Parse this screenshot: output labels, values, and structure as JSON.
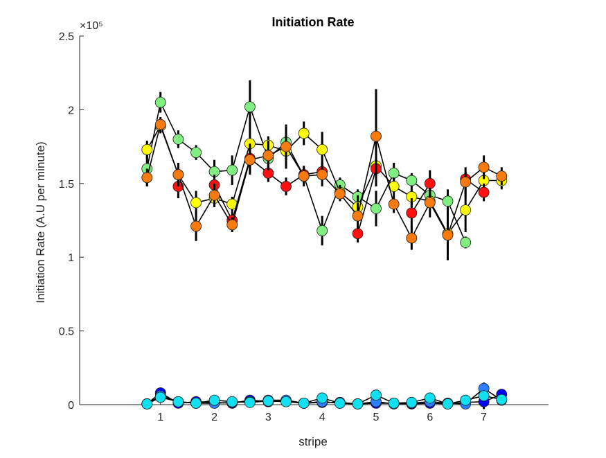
{
  "chart_data": {
    "type": "scatter",
    "title": "Initiation Rate",
    "xlabel": "stripe",
    "ylabel": "Initiation Rate (A.U per minute)",
    "exponent_label": "×10⁵",
    "xlim": [
      -0.5,
      8.2
    ],
    "ylim": [
      0,
      2.5
    ],
    "y_scale": 100000,
    "x_ticks": [
      1,
      2,
      3,
      4,
      5,
      6,
      7
    ],
    "x_tick_labels": [
      "1",
      "2",
      "3",
      "4",
      "5",
      "6",
      "7"
    ],
    "y_ticks": [
      0,
      0.5,
      1,
      1.5,
      2,
      2.5
    ],
    "y_tick_labels": [
      "0",
      "0.5",
      "1",
      "1.5",
      "2",
      "2.5"
    ],
    "grid": false,
    "box": "left-bottom",
    "x": [
      0.75,
      1.0,
      1.33,
      1.66,
      2.0,
      2.33,
      2.66,
      3.0,
      3.33,
      3.66,
      4.0,
      4.33,
      4.66,
      5.0,
      5.33,
      5.66,
      6.0,
      6.33,
      6.66,
      7.0,
      7.33
    ],
    "series": [
      {
        "color": "#80ee80",
        "values": [
          1.6,
          2.05,
          1.8,
          1.71,
          1.58,
          1.59,
          2.02,
          1.67,
          1.78,
          1.55,
          1.18,
          1.49,
          1.41,
          1.33,
          1.57,
          1.52,
          1.42,
          1.38,
          1.1,
          null,
          null
        ],
        "errors": [
          0.12,
          0.07,
          0.06,
          0.05,
          0.08,
          0.1,
          0.18,
          0.06,
          0.06,
          0.05,
          0.1,
          0.05,
          0.05,
          0.12,
          0.07,
          0.05,
          0.05,
          0.08,
          0.04,
          null,
          null
        ]
      },
      {
        "color": "#ffff00",
        "values": [
          1.73,
          1.89,
          1.56,
          1.37,
          1.4,
          1.36,
          1.77,
          1.76,
          1.72,
          1.84,
          1.73,
          1.44,
          1.34,
          1.62,
          1.48,
          1.41,
          1.38,
          1.16,
          1.32,
          1.52,
          1.52
        ],
        "errors": [
          0.06,
          0.05,
          0.05,
          0.08,
          0.06,
          0.05,
          0.07,
          0.06,
          0.1,
          0.08,
          0.12,
          0.05,
          0.08,
          0.1,
          0.06,
          0.07,
          0.05,
          0.08,
          0.15,
          0.08,
          0.06
        ]
      },
      {
        "color": "#ff1010",
        "values": [
          null,
          null,
          1.48,
          null,
          1.49,
          1.25,
          1.67,
          1.57,
          1.48,
          1.56,
          1.58,
          null,
          1.16,
          1.6,
          null,
          1.3,
          1.5,
          null,
          1.53,
          1.44,
          null
        ],
        "errors": [
          null,
          null,
          0.08,
          null,
          0.07,
          0.06,
          0.1,
          0.06,
          0.06,
          0.05,
          0.06,
          null,
          0.06,
          0.12,
          null,
          0.1,
          0.09,
          null,
          0.05,
          0.06,
          null
        ]
      },
      {
        "color": "#f57a10",
        "values": [
          1.54,
          1.9,
          1.56,
          1.21,
          1.42,
          1.22,
          1.66,
          1.69,
          1.75,
          1.55,
          1.56,
          1.43,
          1.28,
          1.82,
          1.36,
          1.13,
          1.37,
          1.15,
          1.51,
          1.61,
          1.55
        ],
        "errors": [
          0.06,
          0.05,
          0.08,
          0.1,
          0.08,
          0.05,
          0.1,
          0.1,
          0.15,
          0.07,
          0.08,
          0.05,
          0.09,
          0.32,
          0.06,
          0.08,
          0.1,
          0.17,
          0.1,
          0.08,
          0.06
        ]
      },
      {
        "color": "#0000ff",
        "values": [
          0.005,
          0.08,
          0.01,
          0.02,
          0.015,
          0.01,
          0.03,
          0.02,
          0.025,
          0.01,
          0.015,
          0.015,
          0.005,
          0.01,
          0.01,
          0.005,
          0.01,
          0.005,
          0.015,
          0.02,
          0.07
        ],
        "errors": [
          0.005,
          0.02,
          0.005,
          0.005,
          0.005,
          0.005,
          0.01,
          0.005,
          0.005,
          0.005,
          0.005,
          0.005,
          0.005,
          0.005,
          0.005,
          0.005,
          0.005,
          0.005,
          0.005,
          0.05,
          0.02
        ]
      },
      {
        "color": "#2c80ff",
        "values": [
          0.005,
          0.06,
          0.02,
          0.01,
          0.01,
          0.015,
          0.02,
          0.03,
          0.03,
          0.01,
          0.02,
          0.01,
          0.005,
          0.02,
          0.005,
          0.01,
          0.02,
          0.01,
          0.005,
          0.11,
          0.03
        ],
        "errors": [
          0.005,
          0.01,
          0.005,
          0.005,
          0.005,
          0.005,
          0.005,
          0.005,
          0.005,
          0.005,
          0.005,
          0.005,
          0.005,
          0.005,
          0.005,
          0.005,
          0.005,
          0.005,
          0.005,
          0.04,
          0.01
        ]
      },
      {
        "color": "#10e0f0",
        "values": [
          0.005,
          0.05,
          0.02,
          0.01,
          0.03,
          0.02,
          0.015,
          0.025,
          0.02,
          0.01,
          0.045,
          0.01,
          0.005,
          0.065,
          0.01,
          0.015,
          0.045,
          0.005,
          0.03,
          0.06,
          0.035
        ],
        "errors": [
          0.005,
          0.01,
          0.005,
          0.005,
          0.005,
          0.005,
          0.005,
          0.005,
          0.005,
          0.005,
          0.01,
          0.005,
          0.005,
          0.01,
          0.005,
          0.005,
          0.01,
          0.005,
          0.005,
          0.02,
          0.01
        ]
      }
    ]
  }
}
